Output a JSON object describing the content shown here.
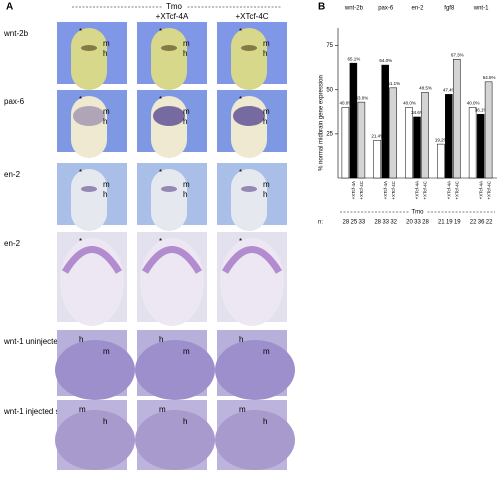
{
  "panel_a": {
    "label": "A",
    "header": "Tmo",
    "columns": [
      "+XTcf-4A",
      "+XTcf-4C"
    ],
    "rows": [
      {
        "label": "wnt-2b",
        "marks": [
          "*",
          "m",
          "h"
        ]
      },
      {
        "label": "pax-6",
        "marks": [
          "*",
          "m",
          "h"
        ]
      },
      {
        "label": "en-2",
        "marks": [
          "*",
          "m",
          "h"
        ]
      },
      {
        "label": "en-2",
        "marks": [
          "*"
        ]
      },
      {
        "label": "wnt-1 uninjected side",
        "marks": [
          "h",
          "m"
        ]
      },
      {
        "label": "wnt-1 injected side",
        "marks": [
          "m",
          "h"
        ]
      }
    ]
  },
  "chart_data": {
    "type": "bar",
    "label": "B",
    "ylabel": "% normal midbrain gene expression",
    "categories": [
      "wnt-2b",
      "pax-6",
      "en-2",
      "fgf8",
      "wnt-1"
    ],
    "bracket": "Tmo",
    "n_label": "n:",
    "ylim": [
      0,
      85
    ],
    "yticks": [
      25,
      50,
      75
    ],
    "series": [
      {
        "color": "#ffffff",
        "values": [
          40.0,
          21.4,
          40.0,
          19.2,
          40.0
        ],
        "value_labels": [
          "40.0%",
          "21.4%",
          "40.0%",
          "19.2%",
          "40.0%"
        ],
        "counts": [
          28,
          28,
          20,
          21,
          22
        ]
      },
      {
        "name": "+XTcf-4A",
        "color": "#000000",
        "values": [
          65.1,
          64.0,
          34.6,
          47.4,
          36.1
        ],
        "value_labels": [
          "65.1%",
          "64.0%",
          "34.6%",
          "47.4%",
          "36.1%"
        ],
        "counts": [
          25,
          33,
          33,
          19,
          36
        ]
      },
      {
        "name": "+XTcf-4C",
        "color": "#d4d4d4",
        "values": [
          43.0,
          51.1,
          48.5,
          67.3,
          54.5
        ],
        "value_labels": [
          "43.0%",
          "51.1%",
          "48.5%",
          "67.3%",
          "54.5%"
        ],
        "counts": [
          33,
          32,
          28,
          19,
          22
        ]
      }
    ]
  }
}
